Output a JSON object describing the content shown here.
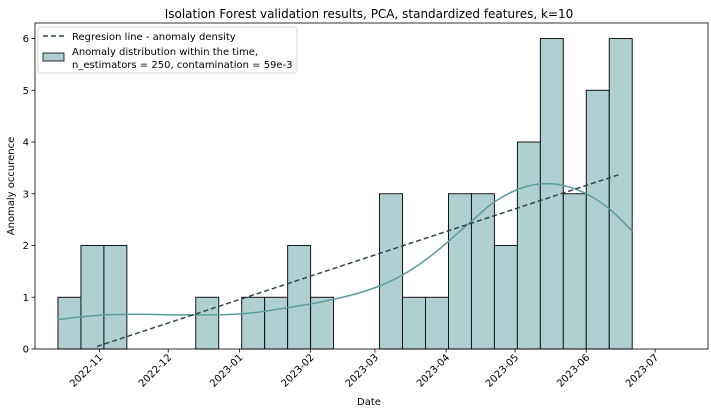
{
  "chart_data": {
    "type": "bar",
    "title": "Isolation Forest validation results, PCA, standardized features, k=10",
    "xlabel": "Date",
    "ylabel": "Anomaly occurence",
    "ylim": [
      0,
      6.3
    ],
    "yticks": [
      0,
      1,
      2,
      3,
      4,
      5,
      6
    ],
    "xlim": [
      "2022-10-04",
      "2023-07-24"
    ],
    "xticks": [
      {
        "date": "2022-11-01",
        "label": "2022-11"
      },
      {
        "date": "2022-12-01",
        "label": "2022-12"
      },
      {
        "date": "2023-01-01",
        "label": "2023-01"
      },
      {
        "date": "2023-02-01",
        "label": "2023-02"
      },
      {
        "date": "2023-03-01",
        "label": "2023-03"
      },
      {
        "date": "2023-04-01",
        "label": "2023-04"
      },
      {
        "date": "2023-05-01",
        "label": "2023-05"
      },
      {
        "date": "2023-06-01",
        "label": "2023-06"
      },
      {
        "date": "2023-07-01",
        "label": "2023-07"
      }
    ],
    "bins": [
      {
        "start": "2022-10-14",
        "end": "2022-10-24",
        "value": 1
      },
      {
        "start": "2022-10-24",
        "end": "2022-11-03",
        "value": 2
      },
      {
        "start": "2022-11-03",
        "end": "2022-11-13",
        "value": 2
      },
      {
        "start": "2022-11-13",
        "end": "2022-11-23",
        "value": 0
      },
      {
        "start": "2022-11-23",
        "end": "2022-12-03",
        "value": 0
      },
      {
        "start": "2022-12-03",
        "end": "2022-12-13",
        "value": 0
      },
      {
        "start": "2022-12-13",
        "end": "2022-12-23",
        "value": 1
      },
      {
        "start": "2022-12-23",
        "end": "2023-01-02",
        "value": 0
      },
      {
        "start": "2023-01-02",
        "end": "2023-01-12",
        "value": 1
      },
      {
        "start": "2023-01-12",
        "end": "2023-01-22",
        "value": 1
      },
      {
        "start": "2023-01-22",
        "end": "2023-02-01",
        "value": 2
      },
      {
        "start": "2023-02-01",
        "end": "2023-02-11",
        "value": 1
      },
      {
        "start": "2023-02-11",
        "end": "2023-02-21",
        "value": 0
      },
      {
        "start": "2023-02-21",
        "end": "2023-03-03",
        "value": 0
      },
      {
        "start": "2023-03-03",
        "end": "2023-03-13",
        "value": 3
      },
      {
        "start": "2023-03-13",
        "end": "2023-03-23",
        "value": 1
      },
      {
        "start": "2023-03-23",
        "end": "2023-04-02",
        "value": 1
      },
      {
        "start": "2023-04-02",
        "end": "2023-04-12",
        "value": 3
      },
      {
        "start": "2023-04-12",
        "end": "2023-04-22",
        "value": 3
      },
      {
        "start": "2023-04-22",
        "end": "2023-05-02",
        "value": 2
      },
      {
        "start": "2023-05-02",
        "end": "2023-05-12",
        "value": 4
      },
      {
        "start": "2023-05-12",
        "end": "2023-05-22",
        "value": 6
      },
      {
        "start": "2023-05-22",
        "end": "2023-06-01",
        "value": 3
      },
      {
        "start": "2023-06-01",
        "end": "2023-06-11",
        "value": 5
      },
      {
        "start": "2023-06-11",
        "end": "2023-06-21",
        "value": 6
      }
    ],
    "kde_curve": {
      "name": "",
      "points": [
        {
          "x": "2022-10-14",
          "y": 0.57
        },
        {
          "x": "2022-10-24",
          "y": 0.62
        },
        {
          "x": "2022-11-03",
          "y": 0.66
        },
        {
          "x": "2022-11-13",
          "y": 0.67
        },
        {
          "x": "2022-11-23",
          "y": 0.67
        },
        {
          "x": "2022-12-03",
          "y": 0.66
        },
        {
          "x": "2022-12-13",
          "y": 0.66
        },
        {
          "x": "2022-12-23",
          "y": 0.66
        },
        {
          "x": "2023-01-02",
          "y": 0.68
        },
        {
          "x": "2023-01-12",
          "y": 0.73
        },
        {
          "x": "2023-01-22",
          "y": 0.8
        },
        {
          "x": "2023-02-01",
          "y": 0.87
        },
        {
          "x": "2023-02-11",
          "y": 0.96
        },
        {
          "x": "2023-02-21",
          "y": 1.07
        },
        {
          "x": "2023-03-03",
          "y": 1.22
        },
        {
          "x": "2023-03-13",
          "y": 1.43
        },
        {
          "x": "2023-03-23",
          "y": 1.72
        },
        {
          "x": "2023-04-02",
          "y": 2.08
        },
        {
          "x": "2023-04-12",
          "y": 2.47
        },
        {
          "x": "2023-04-22",
          "y": 2.84
        },
        {
          "x": "2023-05-02",
          "y": 3.08
        },
        {
          "x": "2023-05-12",
          "y": 3.19
        },
        {
          "x": "2023-05-22",
          "y": 3.16
        },
        {
          "x": "2023-06-01",
          "y": 3.0
        },
        {
          "x": "2023-06-11",
          "y": 2.71
        },
        {
          "x": "2023-06-21",
          "y": 2.28
        }
      ]
    },
    "regression_line": {
      "name": "Regresion line - anomaly density",
      "points": [
        {
          "x": "2022-10-31",
          "y": 0.05
        },
        {
          "x": "2023-06-16",
          "y": 3.38
        }
      ]
    },
    "legend": {
      "placement": "top-left",
      "entries": [
        {
          "type": "line",
          "label": "Regresion line - anomaly density"
        },
        {
          "type": "patch",
          "label": "Anomaly distribution within the time,\nn_estimators = 250, contamination = 59e-3"
        }
      ]
    },
    "grid": false,
    "colors": {
      "bar_fill": "#afcfd0",
      "bar_edge": "#000000",
      "kde_line": "#5c9c9c",
      "regression_line": "#2f4646",
      "axes": "#000000",
      "legend_border": "#cccccc"
    }
  }
}
